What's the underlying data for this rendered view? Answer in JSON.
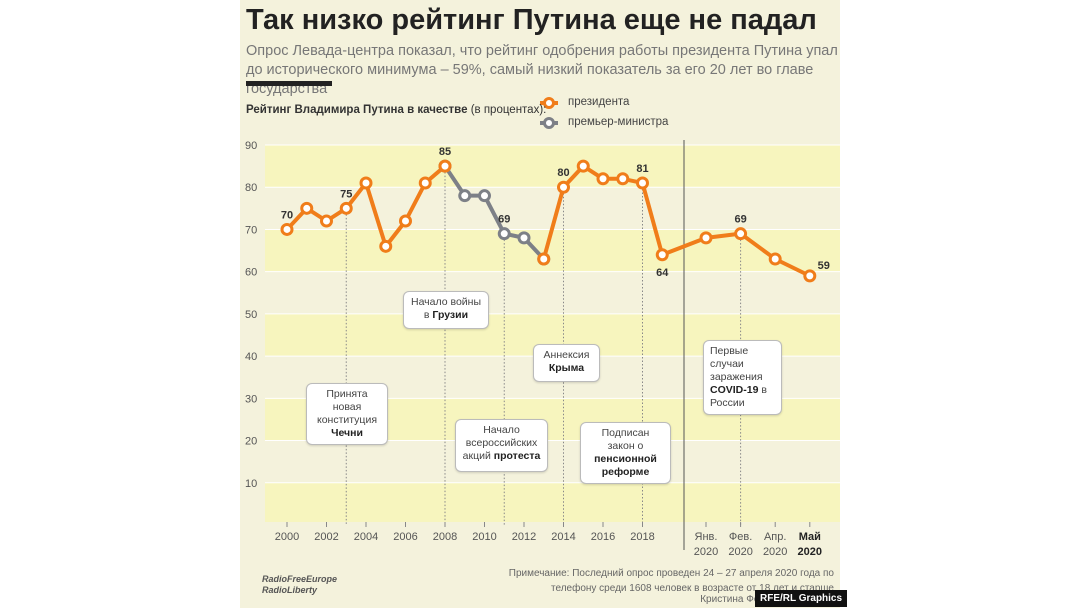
{
  "chart_data": {
    "type": "line",
    "title": "Так низко рейтинг Путина еще не падал",
    "subtitle": "Опрос Левада-центра показал, что рейтинг одобрения работы президента Путина упал до исторического минимума – 59%, самый низкий показатель за его 20 лет во главе государства",
    "axis_label": "Рейтинг Владимира Путина в качестве",
    "axis_label_note": "(в процентах):",
    "categories": [
      "2000",
      null,
      "2002",
      null,
      "2004",
      null,
      "2006",
      null,
      "2008",
      null,
      "2010",
      null,
      "2012",
      null,
      "2014",
      null,
      "2016",
      null,
      "2018",
      null,
      "Янв. 2020",
      "Фев. 2020",
      "Апр. 2020",
      "Май 2020"
    ],
    "series": [
      {
        "name": "президента",
        "color": "#f07d1a",
        "values": [
          70,
          75,
          72,
          75,
          81,
          66,
          72,
          81,
          85,
          null,
          null,
          null,
          null,
          63,
          80,
          85,
          82,
          82,
          81,
          64,
          68,
          69,
          63,
          59
        ],
        "value_labels": [
          "70",
          null,
          null,
          "75",
          null,
          null,
          null,
          null,
          "85",
          null,
          null,
          null,
          null,
          null,
          "80",
          null,
          null,
          null,
          "81",
          "64",
          null,
          "69",
          null,
          "59"
        ]
      },
      {
        "name": "премьер-министра",
        "color": "#7d8087",
        "values": [
          null,
          null,
          null,
          null,
          null,
          null,
          null,
          null,
          85,
          78,
          78,
          69,
          68,
          63,
          null,
          null,
          null,
          null,
          null,
          null,
          null,
          null,
          null,
          null
        ],
        "value_labels": [
          null,
          null,
          null,
          null,
          null,
          null,
          null,
          null,
          null,
          null,
          null,
          "69",
          null,
          null,
          null,
          null,
          null,
          null,
          null,
          null,
          null,
          null,
          null,
          null
        ]
      }
    ],
    "ylim": [
      0,
      90
    ],
    "yticks": [
      10,
      20,
      30,
      40,
      50,
      60,
      70,
      80,
      90
    ],
    "annotations": [
      {
        "parts": [
          {
            "text": "Принята новая конституция ",
            "bold": false
          },
          {
            "text": "Чечни",
            "bold": true
          }
        ]
      },
      {
        "parts": [
          {
            "text": "Начало войны в ",
            "bold": false
          },
          {
            "text": "Грузии",
            "bold": true
          }
        ]
      },
      {
        "parts": [
          {
            "text": "Начало всероссийских акций ",
            "bold": false
          },
          {
            "text": "протеста",
            "bold": true
          }
        ]
      },
      {
        "parts": [
          {
            "text": "Аннексия ",
            "bold": false
          },
          {
            "text": "Крыма",
            "bold": true
          }
        ]
      },
      {
        "parts": [
          {
            "text": "Подписан закон о ",
            "bold": false
          },
          {
            "text": "пенсионной реформе",
            "bold": true
          }
        ]
      },
      {
        "parts": [
          {
            "text": "Первые случаи заражения ",
            "bold": false
          },
          {
            "text": "COVID-19",
            "bold": true
          },
          {
            "text": " в России",
            "bold": false
          }
        ]
      }
    ],
    "note": "Примечание: Последний опрос проведен 24 – 27 апреля 2020 года по телефону среди 1608 человек в возрасте от 18 лет и старше",
    "credit": "Кристина Фолтынова | Источ",
    "badge": "RFE/RL Graphics",
    "logo": [
      "RadioFreeEurope",
      "RadioLiberty"
    ]
  }
}
